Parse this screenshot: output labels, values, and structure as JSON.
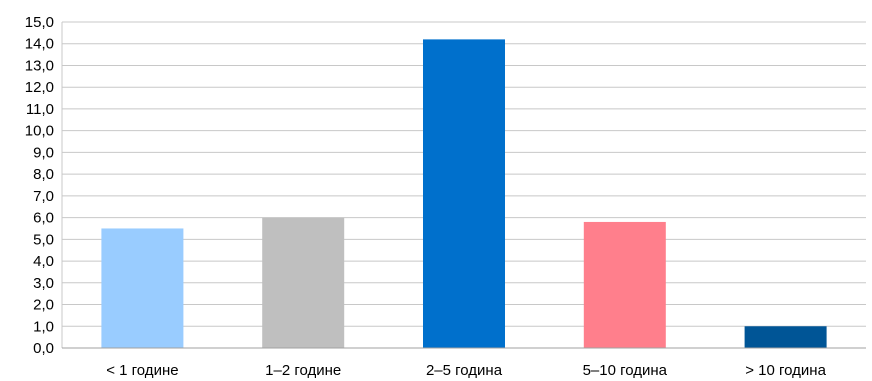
{
  "chart_data": {
    "type": "bar",
    "categories": [
      "< 1 године",
      "1–2 године",
      "2–5 година",
      "5–10 година",
      "> 10 година"
    ],
    "values": [
      5.5,
      6.0,
      14.2,
      5.8,
      1.0
    ],
    "colors": [
      "#99CCFF",
      "#BFBFBF",
      "#0070CC",
      "#FF7F8C",
      "#005596"
    ],
    "ylim": [
      0,
      15
    ],
    "y_ticks": [
      "0,0",
      "1,0",
      "2,0",
      "3,0",
      "4,0",
      "5,0",
      "6,0",
      "7,0",
      "8,0",
      "9,0",
      "10,0",
      "11,0",
      "12,0",
      "13,0",
      "14,0",
      "15,0"
    ],
    "grid": true,
    "title": "",
    "xlabel": "",
    "ylabel": ""
  }
}
